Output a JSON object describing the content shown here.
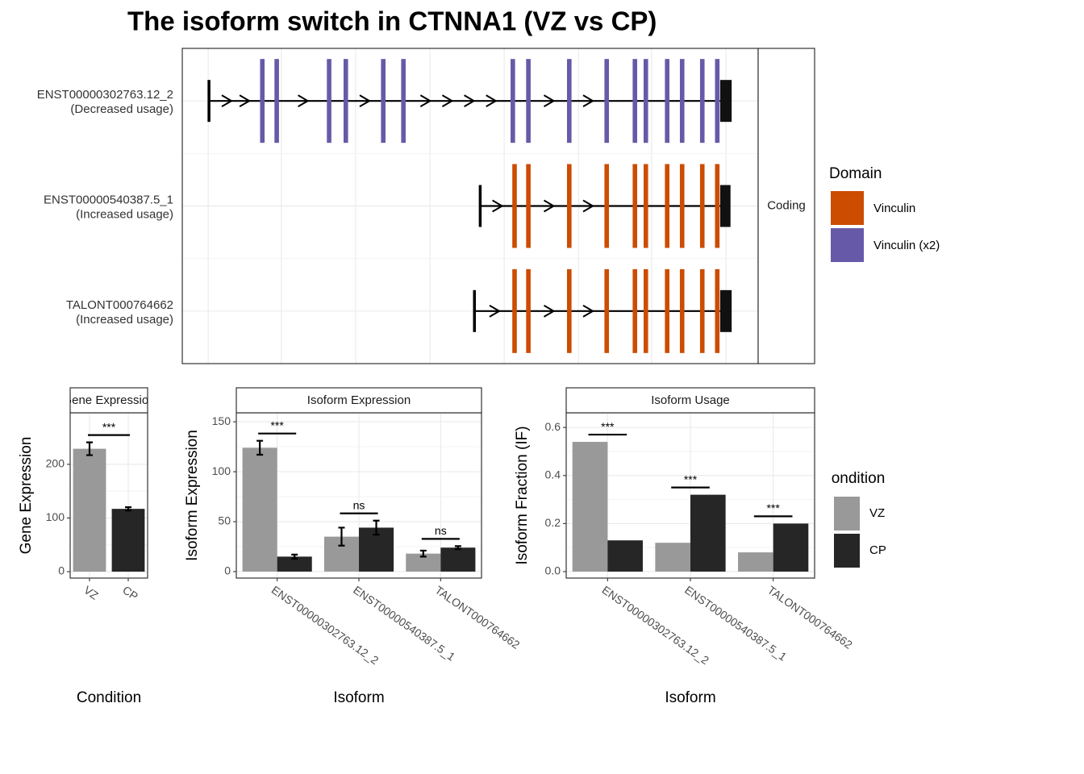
{
  "title": "The isoform switch in CTNNA1 (VZ vs CP)",
  "chart_data": [
    {
      "type": "transcript",
      "strip": "Coding",
      "legend_title": "Domain",
      "xlim": [
        0,
        1000
      ],
      "xticks": [
        45,
        172,
        301,
        430,
        559,
        688,
        815,
        944
      ],
      "grid": true,
      "transcripts": [
        {
          "name": "ENST00000302763.12_2",
          "note": "(Decreased usage)",
          "start": 46,
          "end": [
            934,
            954
          ]
        },
        {
          "name": "ENST00000540387.5_1",
          "note": "(Increased usage)",
          "start": 517,
          "end": [
            934,
            952
          ]
        },
        {
          "name": "TALONT000764662",
          "note": "(Increased usage)",
          "start": 507,
          "end": [
            934,
            954
          ]
        }
      ],
      "series": [
        {
          "name": "Vinculin",
          "color": "#cc4c02",
          "exons": [
            [],
            [
              577,
              601,
              672,
              737,
              786,
              805,
              842,
              868,
              903,
              929
            ],
            [
              577,
              601,
              672,
              737,
              786,
              805,
              842,
              868,
              903,
              929
            ]
          ]
        },
        {
          "name": "Vinculin (x2)",
          "color": "#665aa8",
          "exons": [
            [
              139,
              164,
              255,
              284,
              349,
              384,
              574,
              601,
              672,
              737,
              786,
              805,
              842,
              868,
              903,
              929
            ],
            [],
            []
          ]
        }
      ]
    },
    {
      "type": "bar",
      "strip": "Gene Expression",
      "xlabel": "Condition",
      "ylabel": "Gene Expression",
      "categories": [
        "VZ",
        "CP"
      ],
      "values": [
        229,
        117
      ],
      "errors": [
        12,
        3
      ],
      "colors": [
        "#999999",
        "#262626"
      ],
      "significance": [
        "***"
      ],
      "ylim": [
        -12,
        296
      ],
      "yticks": [
        0,
        100,
        200
      ],
      "grid": true
    },
    {
      "type": "bar",
      "strip": "Isoform Expression",
      "xlabel": "Isoform",
      "ylabel": "Isoform Expression",
      "categories": [
        "ENST00000302763.12_2",
        "ENST00000540387.5_1",
        "TALONT000764662"
      ],
      "series": [
        {
          "name": "VZ",
          "color": "#999999",
          "values": [
            124,
            35,
            18
          ],
          "errors": [
            7,
            9,
            3
          ]
        },
        {
          "name": "CP",
          "color": "#262626",
          "values": [
            15,
            44,
            24
          ],
          "errors": [
            2,
            7,
            1.5
          ]
        }
      ],
      "significance": [
        "***",
        "ns",
        "ns"
      ],
      "ylim": [
        -6.5,
        159
      ],
      "yticks": [
        0,
        50,
        100,
        150
      ],
      "grid": true
    },
    {
      "type": "bar",
      "strip": "Isoform Usage",
      "xlabel": "Isoform",
      "ylabel": "Isoform Fraction (IF)",
      "legend_title": "Condition",
      "categories": [
        "ENST00000302763.12_2",
        "ENST00000540387.5_1",
        "TALONT000764662"
      ],
      "series": [
        {
          "name": "VZ",
          "color": "#999999",
          "values": [
            0.54,
            0.12,
            0.08
          ]
        },
        {
          "name": "CP",
          "color": "#262626",
          "values": [
            0.13,
            0.32,
            0.2
          ]
        }
      ],
      "significance": [
        "***",
        "***",
        "***"
      ],
      "ylim": [
        -0.027,
        0.661
      ],
      "yticks": [
        {
          "value": 0,
          "label": "0.0"
        },
        0.2,
        0.4,
        0.6
      ],
      "grid": true
    }
  ]
}
